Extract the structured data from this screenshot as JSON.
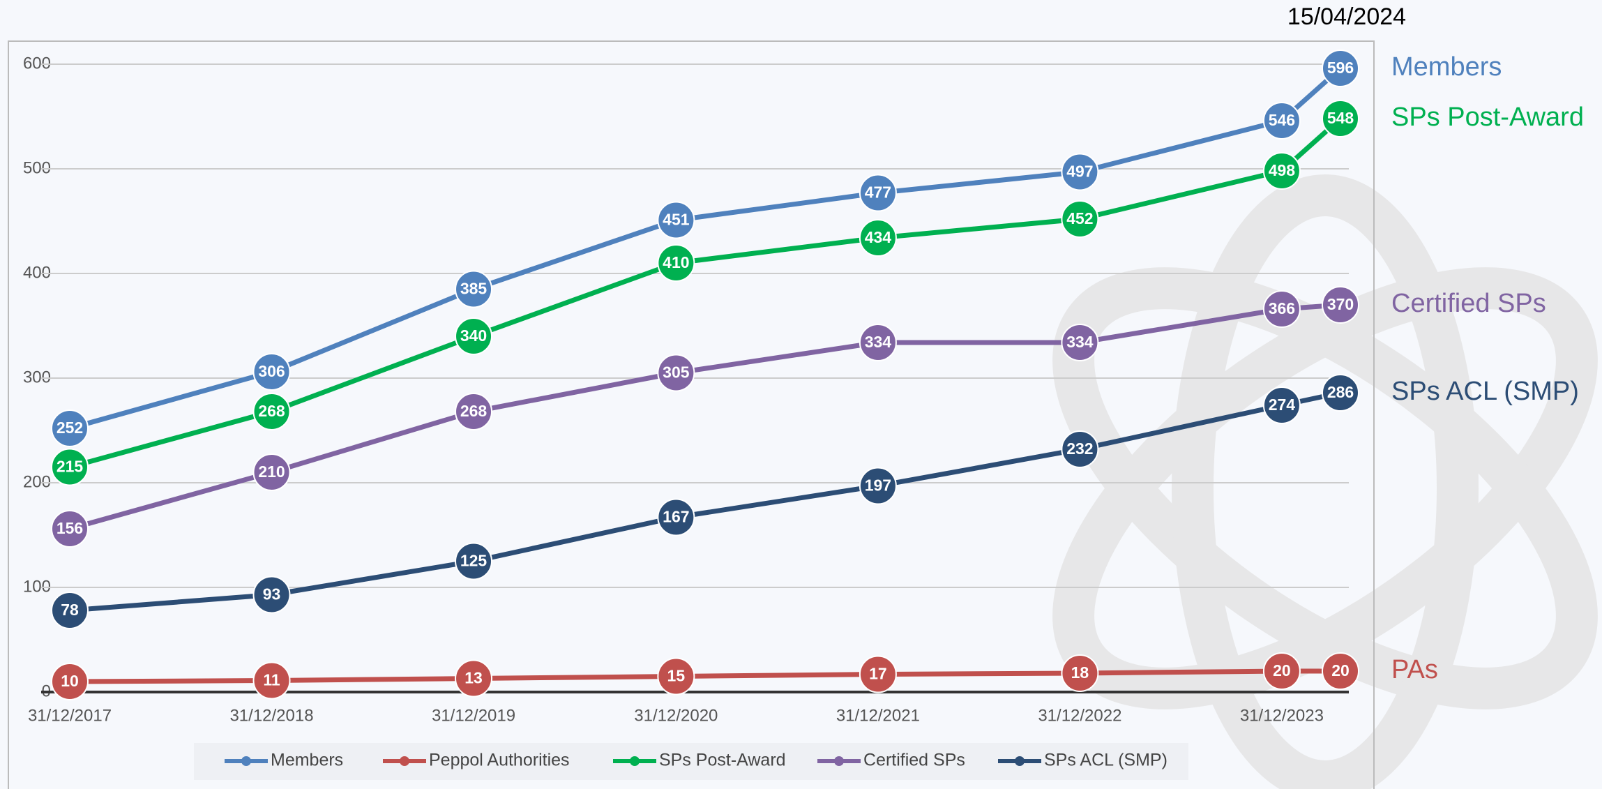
{
  "chart_data": {
    "type": "line",
    "categories": [
      "31/12/2017",
      "31/12/2018",
      "31/12/2019",
      "31/12/2020",
      "31/12/2021",
      "31/12/2022",
      "31/12/2023",
      "15/04/2024"
    ],
    "series": [
      {
        "name": "Members",
        "end_label": "Members",
        "color": "#4f81bd",
        "values": [
          252,
          306,
          385,
          451,
          477,
          497,
          546,
          596
        ]
      },
      {
        "name": "Peppol Authorities",
        "end_label": "PAs",
        "color": "#c0504d",
        "values": [
          10,
          11,
          13,
          15,
          17,
          18,
          20,
          20
        ]
      },
      {
        "name": "SPs Post-Award",
        "end_label": "SPs Post-Award",
        "color": "#00b050",
        "values": [
          215,
          268,
          340,
          410,
          434,
          452,
          498,
          548
        ]
      },
      {
        "name": "Certified SPs",
        "end_label": "Certified SPs",
        "color": "#8064a2",
        "values": [
          156,
          210,
          268,
          305,
          334,
          334,
          366,
          370
        ]
      },
      {
        "name": "SPs ACL (SMP)",
        "end_label": "SPs ACL (SMP)",
        "color": "#2c4d75",
        "values": [
          78,
          93,
          125,
          167,
          197,
          232,
          274,
          286
        ]
      }
    ],
    "ylim": [
      0,
      600
    ],
    "yticks": [
      0,
      100,
      200,
      300,
      400,
      500,
      600
    ],
    "grid": true,
    "legend": "bottom"
  }
}
